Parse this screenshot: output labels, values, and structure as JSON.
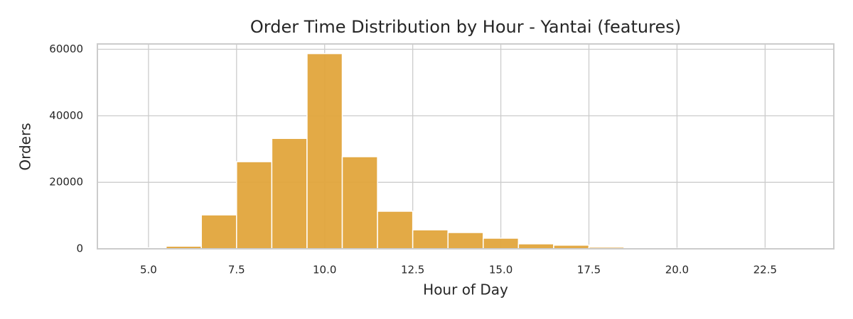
{
  "chart_data": {
    "type": "histogram",
    "title": "Order Time Distribution by Hour - Yantai (features)",
    "x_label": "Hour of Day",
    "y_label": "Orders",
    "bins": [
      4.5,
      5.5,
      6.5,
      7.5,
      8.5,
      9.5,
      10.5,
      11.5,
      12.5,
      13.5,
      14.5,
      15.5,
      16.5,
      17.5,
      18.5,
      19.5,
      20.5,
      21.5,
      22.5,
      23.5
    ],
    "values": [
      300,
      800,
      10200,
      26200,
      33200,
      58700,
      27700,
      11300,
      5700,
      4900,
      3200,
      1500,
      1100,
      500,
      200,
      150,
      100,
      100,
      150
    ],
    "color": "#e2a53c",
    "xlim": [
      3.55,
      24.45
    ],
    "xticks": [
      {
        "value": 5,
        "label": "5.0"
      },
      {
        "value": 7.5,
        "label": "7.5"
      },
      {
        "value": 10,
        "label": "10.0"
      },
      {
        "value": 12.5,
        "label": "12.5"
      },
      {
        "value": 15,
        "label": "15.0"
      },
      {
        "value": 17.5,
        "label": "17.5"
      },
      {
        "value": 20,
        "label": "20.0"
      },
      {
        "value": 22.5,
        "label": "22.5"
      }
    ],
    "ylim": [
      0,
      61600
    ],
    "yticks": [
      0,
      20000,
      40000,
      60000
    ],
    "grid": true
  }
}
